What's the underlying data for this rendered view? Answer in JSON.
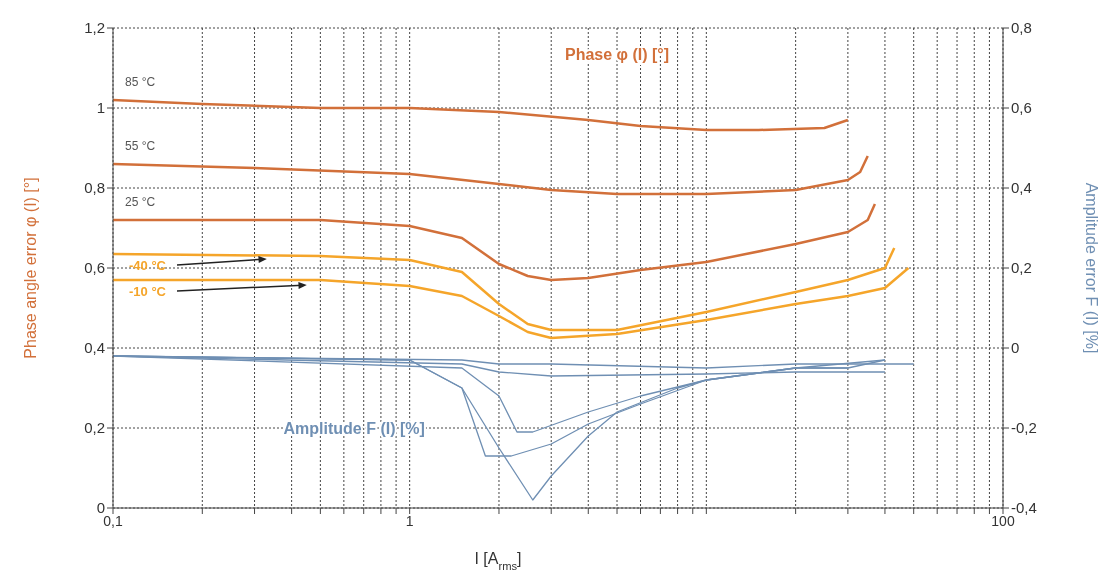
{
  "chart_data": {
    "type": "line",
    "xlabel": "I [A$_{rms}$]",
    "ylabel": "Phase angle error φ (I) [°]",
    "y2label": "Amplitude error F (I) [%]",
    "annotations": [
      "Phase φ (I) [°]",
      "Amplitude F (I) [%]"
    ],
    "log": "x",
    "grid": true,
    "marker": "none",
    "line_style": "solid",
    "xlim": [
      0.1,
      100
    ],
    "xticks": [
      {
        "value": 0.1,
        "label": "0,1"
      },
      {
        "value": 0.2,
        "label": null
      },
      {
        "value": 0.3,
        "label": null
      },
      {
        "value": 0.4,
        "label": null
      },
      {
        "value": 0.5,
        "label": null
      },
      {
        "value": 0.6,
        "label": null
      },
      {
        "value": 0.7,
        "label": null
      },
      {
        "value": 0.8,
        "label": null
      },
      {
        "value": 0.9,
        "label": null
      },
      1,
      {
        "value": 2,
        "label": null
      },
      {
        "value": 3,
        "label": null
      },
      {
        "value": 4,
        "label": null
      },
      {
        "value": 5,
        "label": null
      },
      {
        "value": 6,
        "label": null
      },
      {
        "value": 7,
        "label": null
      },
      {
        "value": 8,
        "label": null
      },
      {
        "value": 9,
        "label": null
      },
      {
        "value": 10,
        "label": null
      },
      {
        "value": 20,
        "label": null
      },
      {
        "value": 30,
        "label": null
      },
      {
        "value": 40,
        "label": null
      },
      {
        "value": 50,
        "label": null
      },
      {
        "value": 60,
        "label": null
      },
      {
        "value": 70,
        "label": null
      },
      {
        "value": 80,
        "label": null
      },
      {
        "value": 90,
        "label": null
      },
      100
    ],
    "ylim": [
      0,
      1.2
    ],
    "yticks": [
      0,
      {
        "value": 0.2,
        "label": "0,2"
      },
      {
        "value": 0.4,
        "label": "0,4"
      },
      {
        "value": 0.6,
        "label": "0,6"
      },
      {
        "value": 0.8,
        "label": "0,8"
      },
      1,
      {
        "value": 1.2,
        "label": "1,2"
      }
    ],
    "y2lim": [
      -0.4,
      0.8
    ],
    "y2ticks": [
      {
        "value": -0.4,
        "label": "-0,4"
      },
      {
        "value": -0.2,
        "label": "-0,2"
      },
      0,
      {
        "value": 0.2,
        "label": "0,2"
      },
      {
        "value": 0.4,
        "label": "0,4"
      },
      {
        "value": 0.6,
        "label": "0,6"
      },
      {
        "value": 0.8,
        "label": "0,8"
      }
    ],
    "series": [
      {
        "name": "85 °C",
        "color": "#d2703a",
        "x": [
          0.1,
          0.2,
          0.5,
          1,
          2,
          4,
          6,
          10,
          15,
          25,
          30
        ],
        "values": [
          1.02,
          1.01,
          1.0,
          1.0,
          0.99,
          0.97,
          0.955,
          0.945,
          0.945,
          0.95,
          0.97
        ]
      },
      {
        "name": "55 °C",
        "color": "#d2703a",
        "x": [
          0.1,
          0.3,
          1,
          2,
          3,
          5,
          10,
          20,
          30,
          33,
          35
        ],
        "values": [
          0.86,
          0.85,
          0.835,
          0.81,
          0.795,
          0.785,
          0.785,
          0.795,
          0.82,
          0.84,
          0.88
        ]
      },
      {
        "name": "25 °C",
        "color": "#d2703a",
        "x": [
          0.1,
          0.5,
          1,
          1.5,
          2,
          2.5,
          3,
          4,
          6,
          10,
          20,
          30,
          35,
          37
        ],
        "values": [
          0.72,
          0.72,
          0.705,
          0.675,
          0.61,
          0.58,
          0.57,
          0.575,
          0.595,
          0.615,
          0.66,
          0.69,
          0.72,
          0.76
        ]
      },
      {
        "name": "-40 °C",
        "color": "#f5a52a",
        "x": [
          0.1,
          0.5,
          1,
          1.5,
          2,
          2.5,
          3,
          5,
          10,
          20,
          30,
          40,
          43
        ],
        "values": [
          0.635,
          0.63,
          0.62,
          0.59,
          0.51,
          0.46,
          0.445,
          0.445,
          0.49,
          0.54,
          0.57,
          0.6,
          0.65
        ]
      },
      {
        "name": "-10 °C",
        "color": "#f5a52a",
        "x": [
          0.1,
          0.5,
          1,
          1.5,
          2,
          2.5,
          3,
          5,
          10,
          20,
          30,
          40,
          48
        ],
        "values": [
          0.57,
          0.57,
          0.555,
          0.53,
          0.48,
          0.44,
          0.425,
          0.435,
          0.47,
          0.51,
          0.53,
          0.55,
          0.6
        ]
      },
      {
        "color": "#6f8fb3",
        "axis": "y2",
        "x": [
          0.1,
          1,
          1.5,
          2,
          2.6,
          3,
          4,
          5,
          8,
          10,
          20,
          30,
          40
        ],
        "values": [
          -0.02,
          -0.03,
          -0.1,
          -0.25,
          -0.38,
          -0.32,
          -0.22,
          -0.16,
          -0.1,
          -0.08,
          -0.05,
          -0.05,
          -0.03
        ]
      },
      {
        "color": "#6f8fb3",
        "axis": "y2",
        "x": [
          0.1,
          1,
          1.5,
          1.8,
          2.2,
          3,
          4,
          6,
          10,
          20,
          30
        ],
        "values": [
          -0.02,
          -0.03,
          -0.1,
          -0.27,
          -0.27,
          -0.24,
          -0.19,
          -0.14,
          -0.08,
          -0.05,
          -0.05
        ]
      },
      {
        "color": "#6f8fb3",
        "axis": "y2",
        "x": [
          0.1,
          1.5,
          2,
          2.3,
          2.6,
          4,
          6,
          10,
          20,
          40
        ],
        "values": [
          -0.02,
          -0.05,
          -0.12,
          -0.21,
          -0.21,
          -0.16,
          -0.12,
          -0.08,
          -0.05,
          -0.03
        ]
      },
      {
        "color": "#6f8fb3",
        "axis": "y2",
        "x": [
          0.1,
          1.5,
          2,
          3,
          10,
          20,
          50
        ],
        "values": [
          -0.02,
          -0.03,
          -0.04,
          -0.04,
          -0.05,
          -0.04,
          -0.04
        ]
      },
      {
        "color": "#6f8fb3",
        "axis": "y2",
        "x": [
          0.1,
          1.5,
          2,
          3,
          10,
          20,
          40
        ],
        "values": [
          -0.02,
          -0.04,
          -0.06,
          -0.07,
          -0.065,
          -0.06,
          -0.06
        ]
      }
    ]
  }
}
